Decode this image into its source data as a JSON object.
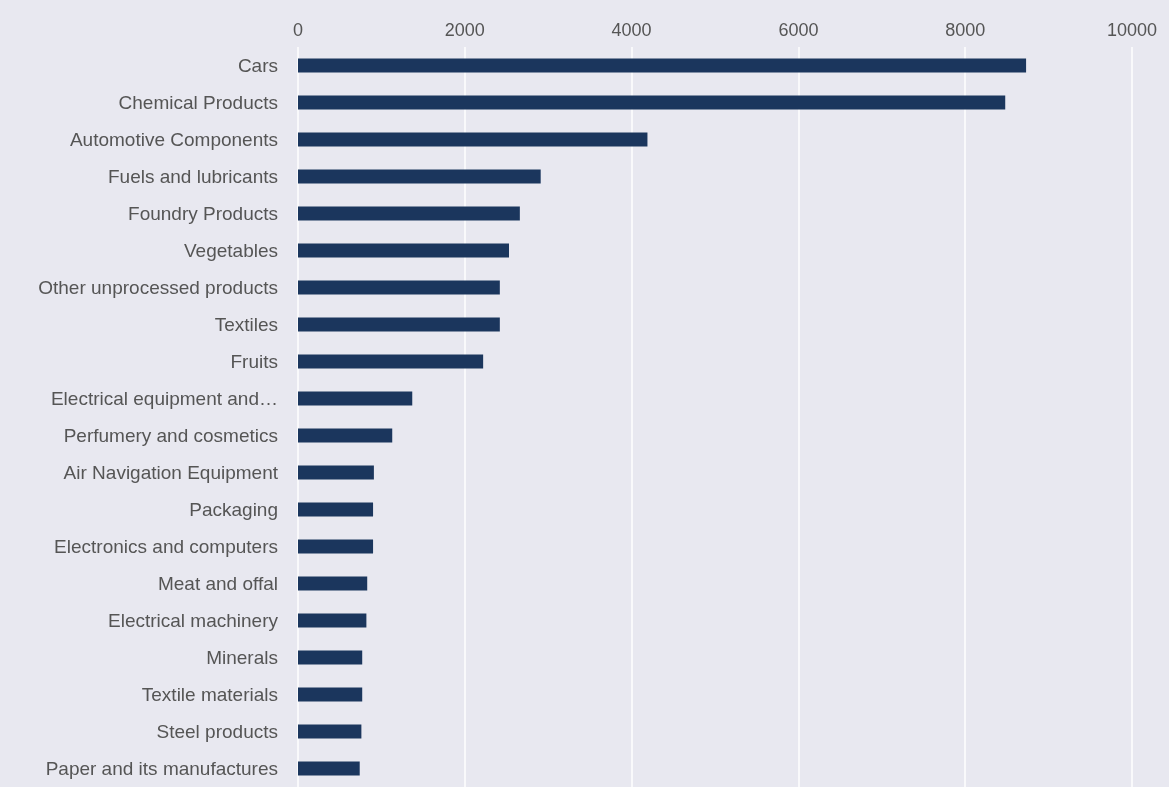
{
  "chart_data": {
    "type": "bar",
    "orientation": "horizontal",
    "categories": [
      "Cars",
      "Chemical Products",
      "Automotive Components",
      "Fuels and lubricants",
      "Foundry Products",
      "Vegetables",
      "Other unprocessed products",
      "Textiles",
      "Fruits",
      "Electrical equipment and…",
      "Perfumery and cosmetics",
      "Air Navigation Equipment",
      "Packaging",
      "Electronics and computers",
      "Meat and offal",
      "Electrical machinery",
      "Minerals",
      "Textile materials",
      "Steel products",
      "Paper and its manufactures"
    ],
    "values": [
      8730,
      8480,
      4190,
      2910,
      2660,
      2530,
      2420,
      2420,
      2220,
      1370,
      1130,
      910,
      900,
      900,
      830,
      820,
      770,
      770,
      760,
      740
    ],
    "color": "#1b365d",
    "xlim": [
      0,
      10000
    ],
    "xticks": [
      0,
      2000,
      4000,
      6000,
      8000,
      10000
    ],
    "grid": "x"
  }
}
